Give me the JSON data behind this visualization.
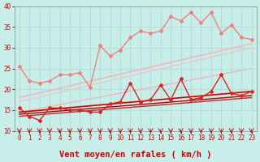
{
  "xlabel": "Vent moyen/en rafales ( km/h )",
  "bg_color": "#c8eeea",
  "grid_color": "#aadddd",
  "xlim": [
    -0.5,
    23.5
  ],
  "ylim": [
    10,
    40
  ],
  "yticks": [
    10,
    15,
    20,
    25,
    30,
    35,
    40
  ],
  "xticks": [
    0,
    1,
    2,
    3,
    4,
    5,
    6,
    7,
    8,
    9,
    10,
    11,
    12,
    13,
    14,
    15,
    16,
    17,
    18,
    19,
    20,
    21,
    22,
    23
  ],
  "series": [
    {
      "x": [
        0,
        1,
        2,
        3,
        4,
        5,
        6,
        7,
        8,
        9,
        10,
        11,
        12,
        13,
        14,
        15,
        16,
        17,
        18,
        19,
        20,
        21,
        22,
        23
      ],
      "y": [
        25.5,
        22.0,
        21.5,
        22.0,
        23.5,
        23.5,
        24.0,
        20.5,
        30.5,
        28.0,
        29.5,
        32.5,
        34.0,
        33.5,
        34.0,
        37.5,
        36.5,
        38.5,
        36.0,
        38.5,
        33.5,
        35.5,
        32.5,
        32.0
      ],
      "color": "#f08080",
      "lw": 1.0,
      "marker": "D",
      "ms": 2.0
    },
    {
      "x": [
        0,
        23
      ],
      "y": [
        18.0,
        31.0
      ],
      "color": "#f0b8b8",
      "lw": 1.2,
      "marker": null,
      "ms": 0
    },
    {
      "x": [
        0,
        23
      ],
      "y": [
        17.0,
        30.0
      ],
      "color": "#e8c8c8",
      "lw": 1.0,
      "marker": null,
      "ms": 0
    },
    {
      "x": [
        0,
        23
      ],
      "y": [
        14.5,
        25.0
      ],
      "color": "#f0b8b8",
      "lw": 1.0,
      "marker": null,
      "ms": 0
    },
    {
      "x": [
        0,
        1,
        2,
        3,
        4,
        5,
        6,
        7,
        8,
        9,
        10,
        11,
        12,
        13,
        14,
        15,
        16,
        17,
        18,
        19,
        20,
        21,
        22,
        23
      ],
      "y": [
        15.5,
        13.5,
        12.5,
        15.5,
        15.5,
        15.0,
        15.0,
        14.5,
        14.5,
        16.5,
        17.0,
        21.5,
        17.0,
        17.5,
        21.0,
        17.5,
        22.5,
        17.5,
        18.0,
        19.5,
        23.5,
        19.0,
        18.5,
        19.5
      ],
      "color": "#dd2222",
      "lw": 1.0,
      "marker": "D",
      "ms": 2.0
    },
    {
      "x": [
        0,
        23
      ],
      "y": [
        14.5,
        19.5
      ],
      "color": "#cc0000",
      "lw": 1.2,
      "marker": null,
      "ms": 0
    },
    {
      "x": [
        0,
        23
      ],
      "y": [
        14.0,
        18.5
      ],
      "color": "#aa0000",
      "lw": 1.0,
      "marker": null,
      "ms": 0
    },
    {
      "x": [
        0,
        23
      ],
      "y": [
        13.5,
        18.0
      ],
      "color": "#cc2222",
      "lw": 1.0,
      "marker": null,
      "ms": 0
    }
  ],
  "arrow_color": "#cc0000",
  "tick_label_color": "#cc0000",
  "axis_label_color": "#cc0000",
  "tick_label_fontsize": 5.5,
  "xlabel_fontsize": 7.5
}
